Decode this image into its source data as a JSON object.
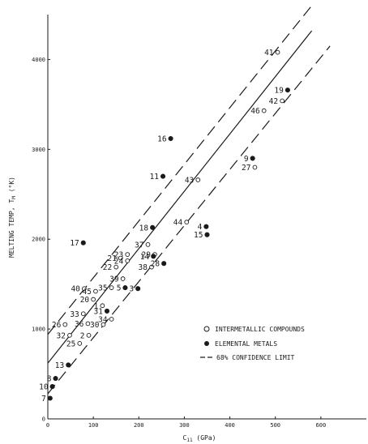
{
  "chart_data": {
    "type": "scatter",
    "xlabel": "C",
    "xlabel_sub": "11",
    "xlabel_unit": "(GPa)",
    "ylabel": "MELTING TEMP, T",
    "ylabel_sub": "M",
    "ylabel_unit": "(°K)",
    "xlim": [
      0,
      700
    ],
    "ylim": [
      0,
      4500
    ],
    "x_ticks": [
      0,
      100,
      200,
      300,
      400,
      500,
      600
    ],
    "y_ticks": [
      0,
      1000,
      2000,
      3000,
      4000
    ],
    "grid": false,
    "legend_position": "bottom-right",
    "legend": {
      "intermetallic": "INTERMETALLIC COMPOUNDS",
      "elemental": "ELEMENTAL METALS",
      "confidence": "68% CONFIDENCE LIMIT"
    },
    "series": [
      {
        "name": "INTERMETALLIC COMPOUNDS",
        "marker": "open-circle",
        "points": [
          {
            "label": "41",
            "x": 505,
            "y": 4080
          },
          {
            "label": "46",
            "x": 475,
            "y": 3430
          },
          {
            "label": "42",
            "x": 515,
            "y": 3540
          },
          {
            "label": "27",
            "x": 455,
            "y": 2800
          },
          {
            "label": "43",
            "x": 330,
            "y": 2660
          },
          {
            "label": "44",
            "x": 305,
            "y": 2190
          },
          {
            "label": "37",
            "x": 220,
            "y": 1940
          },
          {
            "label": "23",
            "x": 175,
            "y": 1830
          },
          {
            "label": "29",
            "x": 235,
            "y": 1830
          },
          {
            "label": "21",
            "x": 160,
            "y": 1790
          },
          {
            "label": "24",
            "x": 175,
            "y": 1760
          },
          {
            "label": "22",
            "x": 150,
            "y": 1690
          },
          {
            "label": "38",
            "x": 228,
            "y": 1690
          },
          {
            "label": "39",
            "x": 165,
            "y": 1560
          },
          {
            "label": "35",
            "x": 140,
            "y": 1460
          },
          {
            "label": "40",
            "x": 80,
            "y": 1450
          },
          {
            "label": "45",
            "x": 105,
            "y": 1420
          },
          {
            "label": "20",
            "x": 100,
            "y": 1330
          },
          {
            "label": "1",
            "x": 120,
            "y": 1260
          },
          {
            "label": "33",
            "x": 78,
            "y": 1170
          },
          {
            "label": "36",
            "x": 88,
            "y": 1060
          },
          {
            "label": "30",
            "x": 122,
            "y": 1050
          },
          {
            "label": "34",
            "x": 140,
            "y": 1110
          },
          {
            "label": "26",
            "x": 38,
            "y": 1050
          },
          {
            "label": "32",
            "x": 48,
            "y": 930
          },
          {
            "label": "25",
            "x": 70,
            "y": 840
          },
          {
            "label": "2",
            "x": 90,
            "y": 930
          }
        ]
      },
      {
        "name": "ELEMENTAL METALS",
        "marker": "filled-circle",
        "points": [
          {
            "label": "19",
            "x": 527,
            "y": 3660
          },
          {
            "label": "16",
            "x": 270,
            "y": 3120
          },
          {
            "label": "9",
            "x": 450,
            "y": 2900
          },
          {
            "label": "11",
            "x": 253,
            "y": 2700
          },
          {
            "label": "18",
            "x": 230,
            "y": 2130
          },
          {
            "label": "4",
            "x": 348,
            "y": 2140
          },
          {
            "label": "15",
            "x": 350,
            "y": 2050
          },
          {
            "label": "17",
            "x": 78,
            "y": 1960
          },
          {
            "label": "14",
            "x": 232,
            "y": 1810
          },
          {
            "label": "28",
            "x": 255,
            "y": 1730
          },
          {
            "label": "3",
            "x": 198,
            "y": 1450
          },
          {
            "label": "5",
            "x": 170,
            "y": 1460
          },
          {
            "label": "31",
            "x": 130,
            "y": 1200
          },
          {
            "label": "13",
            "x": 45,
            "y": 600
          },
          {
            "label": "8",
            "x": 17,
            "y": 450
          },
          {
            "label": "10",
            "x": 10,
            "y": 360
          },
          {
            "label": "7",
            "x": 5,
            "y": 230
          }
        ]
      }
    ],
    "lines": [
      {
        "kind": "fit",
        "style": "solid",
        "from": [
          0,
          620
        ],
        "to": [
          580,
          4320
        ]
      },
      {
        "kind": "upper-limit",
        "style": "dashed",
        "from": [
          0,
          940
        ],
        "to": [
          580,
          4600
        ]
      },
      {
        "kind": "lower-limit",
        "style": "dashed",
        "from": [
          0,
          280
        ],
        "to": [
          620,
          4150
        ]
      }
    ]
  }
}
